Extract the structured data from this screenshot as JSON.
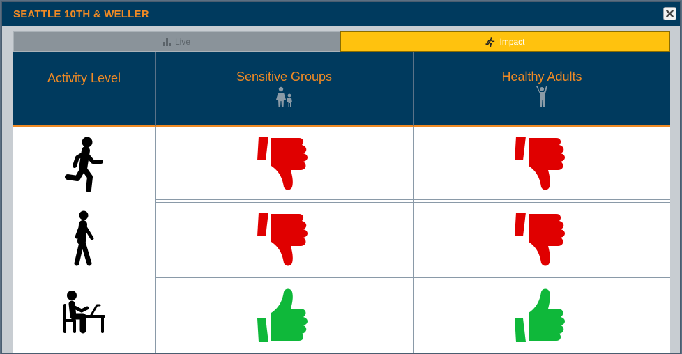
{
  "window": {
    "title": "SEATTLE 10TH & WELLER",
    "close_icon": "close-icon"
  },
  "tabs": [
    {
      "label": "Live",
      "icon": "bar-chart-icon",
      "active": false
    },
    {
      "label": "Impact",
      "icon": "runner-icon",
      "active": true
    }
  ],
  "table": {
    "headers": {
      "activity": "Activity Level",
      "sensitive": "Sensitive Groups",
      "healthy": "Healthy Adults"
    },
    "header_icons": {
      "sensitive": "adult-child-icon",
      "healthy": "person-arms-up-icon"
    },
    "rows": [
      {
        "activity_icon": "running-person-icon",
        "sensitive": "thumbs-down",
        "healthy": "thumbs-down"
      },
      {
        "activity_icon": "walking-person-icon",
        "sensitive": "thumbs-down",
        "healthy": "thumbs-down"
      },
      {
        "activity_icon": "person-at-desk-icon",
        "sensitive": "thumbs-up",
        "healthy": "thumbs-up"
      }
    ]
  },
  "colors": {
    "header_bg": "#003a5e",
    "accent_orange": "#f08a24",
    "tab_active": "#ffc20e",
    "tab_inactive": "#8a939a",
    "thumbs_down": "#e00000",
    "thumbs_up": "#0fb83a"
  }
}
